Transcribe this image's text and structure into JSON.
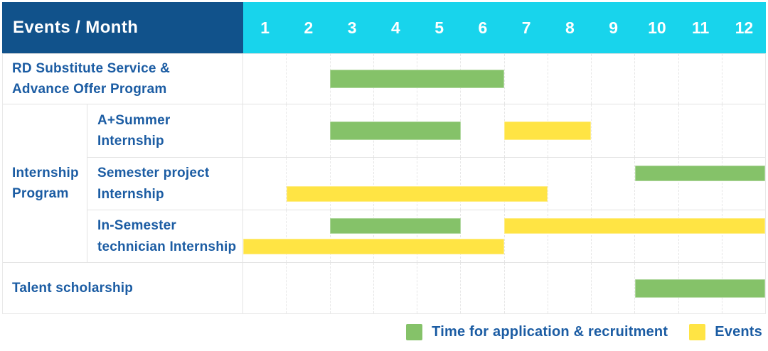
{
  "colors": {
    "header_bg": "#11528B",
    "months_bg": "#18D4EC",
    "label_text": "#1B5CA3",
    "green": "#85C269",
    "yellow": "#FFE444"
  },
  "header": {
    "corner_label": "Events / Month",
    "months": [
      "1",
      "2",
      "3",
      "4",
      "5",
      "6",
      "7",
      "8",
      "9",
      "10",
      "11",
      "12"
    ]
  },
  "rows": {
    "rd": {
      "label_lines": [
        "RD Substitute Service &",
        "Advance Offer Program"
      ]
    },
    "internship_group": {
      "label_lines": [
        "Internship",
        "Program"
      ]
    },
    "a_summer": {
      "label_lines": [
        "A+Summer",
        "Internship"
      ]
    },
    "semester_project": {
      "label_lines": [
        "Semester project",
        "Internship"
      ]
    },
    "in_semester": {
      "label_lines": [
        "In-Semester",
        "technician Internship"
      ]
    },
    "talent": {
      "label_lines": [
        "Talent scholarship"
      ]
    }
  },
  "legend": [
    {
      "label": "Time for application & recruitment",
      "color": "green"
    },
    {
      "label": "Events",
      "color": "yellow"
    }
  ],
  "chart_data": {
    "type": "gantt",
    "x_axis": {
      "label": "Month",
      "ticks": [
        1,
        2,
        3,
        4,
        5,
        6,
        7,
        8,
        9,
        10,
        11,
        12
      ],
      "range": [
        1,
        12
      ]
    },
    "series_legend": {
      "green": "Time for application & recruitment",
      "yellow": "Events"
    },
    "rows": [
      "RD Substitute Service & Advance Offer Program",
      "Internship Program / A+Summer Internship",
      "Internship Program / Semester project Internship",
      "Internship Program / In-Semester technician Internship",
      "Talent scholarship"
    ],
    "bars": [
      {
        "row": "RD Substitute Service & Advance Offer Program",
        "row_id": "rd",
        "series": "Time for application & recruitment",
        "color": "green",
        "start_month": 3,
        "end_month": 6,
        "lane": "single"
      },
      {
        "row": "A+Summer Internship",
        "row_id": "a_summer",
        "series": "Time for application & recruitment",
        "color": "green",
        "start_month": 3,
        "end_month": 5,
        "lane": "single"
      },
      {
        "row": "A+Summer Internship",
        "row_id": "a_summer",
        "series": "Events",
        "color": "yellow",
        "start_month": 7,
        "end_month": 8,
        "lane": "single"
      },
      {
        "row": "Semester project Internship",
        "row_id": "semester_project",
        "series": "Time for application & recruitment",
        "color": "green",
        "start_month": 10,
        "end_month": 12,
        "lane": "top"
      },
      {
        "row": "Semester project Internship",
        "row_id": "semester_project",
        "series": "Events",
        "color": "yellow",
        "start_month": 2,
        "end_month": 7,
        "lane": "bottom"
      },
      {
        "row": "In-Semester technician Internship",
        "row_id": "in_semester",
        "series": "Time for application & recruitment",
        "color": "green",
        "start_month": 3,
        "end_month": 5,
        "lane": "top"
      },
      {
        "row": "In-Semester technician Internship",
        "row_id": "in_semester",
        "series": "Events",
        "color": "yellow",
        "start_month": 7,
        "end_month": 12,
        "lane": "top"
      },
      {
        "row": "In-Semester technician Internship",
        "row_id": "in_semester",
        "series": "Events",
        "color": "yellow",
        "start_month": 1,
        "end_month": 6,
        "lane": "bottom"
      },
      {
        "row": "Talent scholarship",
        "row_id": "talent",
        "series": "Time for application & recruitment",
        "color": "green",
        "start_month": 10,
        "end_month": 12,
        "lane": "single"
      }
    ]
  }
}
